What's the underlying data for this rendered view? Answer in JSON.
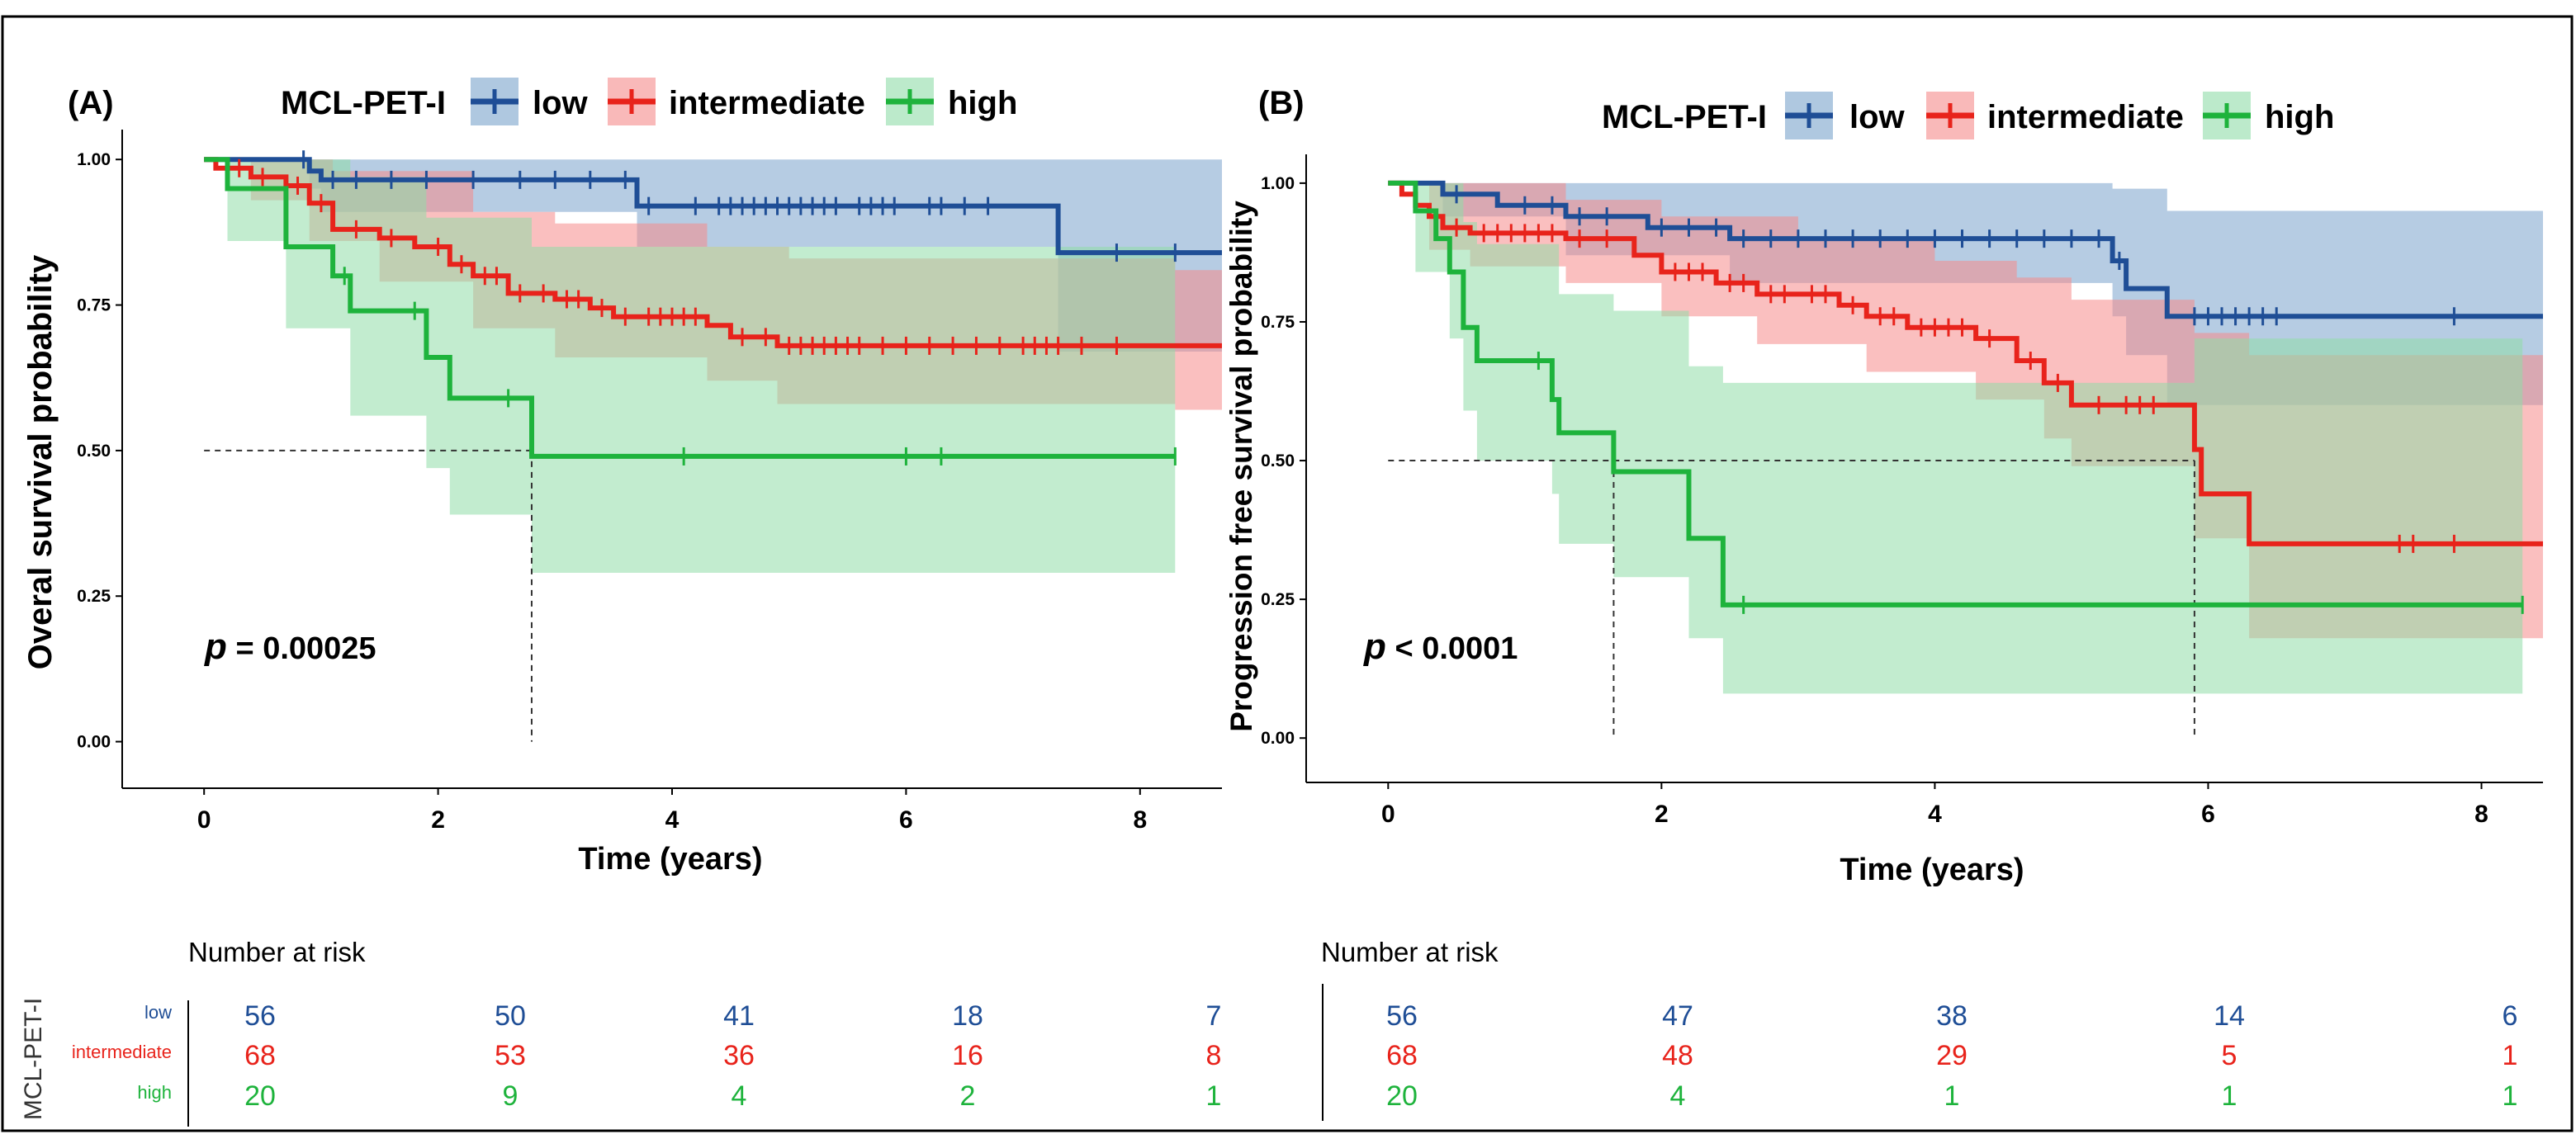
{
  "colors": {
    "low": "#1f4e96",
    "intermediate": "#e8231b",
    "high": "#1eb33c",
    "low_band": "#7aa3cc",
    "intermediate_band": "#f58a8a",
    "high_band": "#8fdca8",
    "axis": "#000000",
    "ref_line": "#333333",
    "frame": "#000000"
  },
  "chart_data": [
    {
      "type": "line",
      "panel_label": "(A)",
      "legend_title": "MCL-PET-I",
      "legend_entries": [
        "low",
        "intermediate",
        "high"
      ],
      "xlabel": "Time (years)",
      "ylabel": "Overal survival probability",
      "xlim": [
        -0.7,
        8.7
      ],
      "ylim": [
        -0.08,
        1.04
      ],
      "xticks": [
        0,
        2,
        4,
        6,
        8
      ],
      "yticks": [
        0.0,
        0.25,
        0.5,
        0.75,
        1.0
      ],
      "ytick_labels": [
        "0.00",
        "0.25",
        "0.50",
        "0.75",
        "1.00"
      ],
      "p_label": "p",
      "p_rest": " = 0.00025",
      "median_line": {
        "y": 0.5,
        "x_end": 2.8,
        "drops": [
          2.8
        ]
      },
      "series": [
        {
          "name": "low",
          "end_x": 8.7,
          "steps": [
            [
              0,
              1.0
            ],
            [
              0.9,
              0.98
            ],
            [
              1.0,
              0.965
            ],
            [
              3.7,
              0.92
            ],
            [
              7.3,
              0.84
            ]
          ],
          "band_upper": [
            [
              0,
              1.0
            ],
            [
              1.0,
              1.0
            ],
            [
              3.7,
              1.0
            ],
            [
              7.3,
              1.0
            ],
            [
              8.7,
              1.0
            ]
          ],
          "band_lower": [
            [
              0,
              1.0
            ],
            [
              0.9,
              0.95
            ],
            [
              1.0,
              0.91
            ],
            [
              3.7,
              0.85
            ],
            [
              7.3,
              0.67
            ],
            [
              8.7,
              0.67
            ]
          ],
          "censors": [
            0.85,
            1.1,
            1.3,
            1.6,
            1.9,
            2.3,
            2.7,
            3.0,
            3.3,
            3.6,
            3.8,
            4.2,
            4.4,
            4.5,
            4.6,
            4.7,
            4.8,
            4.9,
            5.0,
            5.1,
            5.2,
            5.3,
            5.4,
            5.6,
            5.7,
            5.8,
            5.9,
            6.2,
            6.3,
            6.5,
            6.7,
            7.8,
            8.3
          ]
        },
        {
          "name": "intermediate",
          "end_x": 8.7,
          "steps": [
            [
              0,
              1.0
            ],
            [
              0.1,
              0.985
            ],
            [
              0.4,
              0.97
            ],
            [
              0.7,
              0.955
            ],
            [
              0.9,
              0.925
            ],
            [
              1.1,
              0.88
            ],
            [
              1.5,
              0.865
            ],
            [
              1.8,
              0.85
            ],
            [
              2.1,
              0.82
            ],
            [
              2.3,
              0.8
            ],
            [
              2.6,
              0.77
            ],
            [
              3.0,
              0.76
            ],
            [
              3.3,
              0.745
            ],
            [
              3.5,
              0.73
            ],
            [
              4.3,
              0.715
            ],
            [
              4.5,
              0.695
            ],
            [
              4.9,
              0.68
            ]
          ],
          "band_upper": [
            [
              0,
              1.0
            ],
            [
              0.9,
              1.0
            ],
            [
              1.1,
              0.98
            ],
            [
              2.3,
              0.91
            ],
            [
              3.0,
              0.89
            ],
            [
              4.3,
              0.85
            ],
            [
              5.0,
              0.83
            ],
            [
              8.3,
              0.83
            ],
            [
              8.3,
              0.81
            ],
            [
              8.7,
              0.81
            ]
          ],
          "band_lower": [
            [
              0,
              1.0
            ],
            [
              0.4,
              0.93
            ],
            [
              0.9,
              0.86
            ],
            [
              1.5,
              0.79
            ],
            [
              2.3,
              0.71
            ],
            [
              3.0,
              0.66
            ],
            [
              4.3,
              0.62
            ],
            [
              4.9,
              0.58
            ],
            [
              8.3,
              0.58
            ],
            [
              8.3,
              0.57
            ],
            [
              8.7,
              0.57
            ]
          ],
          "censors": [
            0.3,
            0.5,
            0.8,
            1.0,
            1.3,
            1.6,
            2.0,
            2.2,
            2.4,
            2.5,
            2.7,
            2.9,
            3.1,
            3.2,
            3.4,
            3.6,
            3.8,
            3.9,
            4.0,
            4.1,
            4.2,
            4.6,
            4.8,
            5.0,
            5.1,
            5.2,
            5.3,
            5.4,
            5.5,
            5.6,
            5.8,
            6.0,
            6.2,
            6.4,
            6.6,
            6.8,
            7.0,
            7.1,
            7.2,
            7.3,
            7.5,
            7.8
          ]
        },
        {
          "name": "high",
          "end_x": 8.3,
          "steps": [
            [
              0,
              1.0
            ],
            [
              0.2,
              0.95
            ],
            [
              0.7,
              0.85
            ],
            [
              1.1,
              0.8
            ],
            [
              1.25,
              0.74
            ],
            [
              1.9,
              0.66
            ],
            [
              2.1,
              0.59
            ],
            [
              2.8,
              0.49
            ]
          ],
          "band_upper": [
            [
              0,
              1.0
            ],
            [
              0.2,
              1.0
            ],
            [
              1.25,
              0.97
            ],
            [
              1.9,
              0.9
            ],
            [
              2.8,
              0.85
            ],
            [
              8.3,
              0.85
            ]
          ],
          "band_lower": [
            [
              0,
              1.0
            ],
            [
              0.2,
              0.86
            ],
            [
              0.7,
              0.71
            ],
            [
              1.25,
              0.56
            ],
            [
              1.9,
              0.47
            ],
            [
              2.1,
              0.39
            ],
            [
              2.8,
              0.29
            ],
            [
              8.3,
              0.29
            ]
          ],
          "censors": [
            1.2,
            1.8,
            2.6,
            4.1,
            6.0,
            6.3,
            8.3
          ]
        }
      ],
      "risk_table": {
        "title": "Number at risk",
        "strata_label": "MCL-PET-I",
        "groups": [
          "low",
          "intermediate",
          "high"
        ],
        "times": [
          0,
          2,
          4,
          6,
          8
        ],
        "rows": [
          [
            56,
            50,
            41,
            18,
            7
          ],
          [
            68,
            53,
            36,
            16,
            8
          ],
          [
            20,
            9,
            4,
            2,
            1
          ]
        ]
      }
    },
    {
      "type": "line",
      "panel_label": "(B)",
      "legend_title": "MCL-PET-I",
      "legend_entries": [
        "low",
        "intermediate",
        "high"
      ],
      "xlabel": "Time (years)",
      "ylabel": "Progression free survival probability",
      "xlim": [
        -0.6,
        8.45
      ],
      "ylim": [
        -0.08,
        1.04
      ],
      "xticks": [
        0,
        2,
        4,
        6,
        8
      ],
      "yticks": [
        0.0,
        0.25,
        0.5,
        0.75,
        1.0
      ],
      "ytick_labels": [
        "0.00",
        "0.25",
        "0.50",
        "0.75",
        "1.00"
      ],
      "p_label": "p",
      "p_rest": " < 0.0001",
      "median_line": {
        "y": 0.5,
        "x_end": 5.9,
        "drops": [
          1.65,
          5.9
        ]
      },
      "series": [
        {
          "name": "low",
          "end_x": 8.45,
          "steps": [
            [
              0,
              1.0
            ],
            [
              0.4,
              0.98
            ],
            [
              0.8,
              0.96
            ],
            [
              1.3,
              0.94
            ],
            [
              1.9,
              0.92
            ],
            [
              2.5,
              0.9
            ],
            [
              5.3,
              0.86
            ],
            [
              5.4,
              0.81
            ],
            [
              5.7,
              0.76
            ]
          ],
          "band_upper": [
            [
              0,
              1.0
            ],
            [
              1.9,
              1.0
            ],
            [
              5.3,
              0.99
            ],
            [
              5.7,
              0.95
            ],
            [
              8.45,
              0.95
            ]
          ],
          "band_lower": [
            [
              0,
              1.0
            ],
            [
              0.4,
              0.94
            ],
            [
              1.3,
              0.87
            ],
            [
              2.5,
              0.82
            ],
            [
              5.3,
              0.76
            ],
            [
              5.4,
              0.69
            ],
            [
              5.7,
              0.6
            ],
            [
              8.45,
              0.6
            ]
          ],
          "censors": [
            0.5,
            1.0,
            1.2,
            1.4,
            1.6,
            2.0,
            2.2,
            2.4,
            2.6,
            2.8,
            3.0,
            3.2,
            3.4,
            3.6,
            3.8,
            4.0,
            4.2,
            4.4,
            4.6,
            4.8,
            5.0,
            5.2,
            5.35,
            5.9,
            6.0,
            6.1,
            6.2,
            6.3,
            6.4,
            6.5,
            7.8
          ]
        },
        {
          "name": "intermediate",
          "end_x": 8.45,
          "steps": [
            [
              0,
              1.0
            ],
            [
              0.1,
              0.98
            ],
            [
              0.2,
              0.96
            ],
            [
              0.3,
              0.94
            ],
            [
              0.4,
              0.92
            ],
            [
              0.6,
              0.91
            ],
            [
              1.3,
              0.9
            ],
            [
              1.8,
              0.87
            ],
            [
              2.0,
              0.84
            ],
            [
              2.4,
              0.82
            ],
            [
              2.7,
              0.8
            ],
            [
              3.3,
              0.78
            ],
            [
              3.5,
              0.76
            ],
            [
              3.8,
              0.74
            ],
            [
              4.3,
              0.72
            ],
            [
              4.6,
              0.68
            ],
            [
              4.8,
              0.64
            ],
            [
              5.0,
              0.6
            ],
            [
              5.9,
              0.52
            ],
            [
              5.95,
              0.44
            ],
            [
              6.3,
              0.35
            ]
          ],
          "band_upper": [
            [
              0,
              1.0
            ],
            [
              0.4,
              1.0
            ],
            [
              1.3,
              0.97
            ],
            [
              2.0,
              0.94
            ],
            [
              3.0,
              0.9
            ],
            [
              4.0,
              0.86
            ],
            [
              4.6,
              0.83
            ],
            [
              5.0,
              0.79
            ],
            [
              5.9,
              0.73
            ],
            [
              6.3,
              0.69
            ],
            [
              8.45,
              0.69
            ]
          ],
          "band_lower": [
            [
              0,
              1.0
            ],
            [
              0.3,
              0.88
            ],
            [
              0.6,
              0.85
            ],
            [
              1.3,
              0.82
            ],
            [
              2.0,
              0.76
            ],
            [
              2.7,
              0.71
            ],
            [
              3.5,
              0.66
            ],
            [
              4.3,
              0.61
            ],
            [
              4.8,
              0.54
            ],
            [
              5.0,
              0.49
            ],
            [
              5.9,
              0.36
            ],
            [
              6.3,
              0.18
            ],
            [
              8.45,
              0.18
            ]
          ],
          "censors": [
            0.5,
            0.7,
            0.8,
            0.9,
            1.0,
            1.1,
            1.2,
            1.4,
            1.6,
            2.1,
            2.2,
            2.3,
            2.5,
            2.6,
            2.8,
            2.9,
            3.1,
            3.2,
            3.4,
            3.6,
            3.7,
            3.9,
            4.0,
            4.1,
            4.2,
            4.4,
            4.7,
            4.9,
            5.2,
            5.4,
            5.5,
            5.6,
            7.4,
            7.5,
            7.8
          ]
        },
        {
          "name": "high",
          "end_x": 8.3,
          "steps": [
            [
              0,
              1.0
            ],
            [
              0.2,
              0.95
            ],
            [
              0.35,
              0.9
            ],
            [
              0.45,
              0.84
            ],
            [
              0.55,
              0.74
            ],
            [
              0.65,
              0.68
            ],
            [
              1.2,
              0.61
            ],
            [
              1.25,
              0.55
            ],
            [
              1.65,
              0.48
            ],
            [
              2.2,
              0.36
            ],
            [
              2.45,
              0.24
            ]
          ],
          "band_upper": [
            [
              0,
              1.0
            ],
            [
              0.35,
              1.0
            ],
            [
              0.55,
              0.93
            ],
            [
              0.65,
              0.89
            ],
            [
              1.25,
              0.8
            ],
            [
              1.65,
              0.77
            ],
            [
              2.2,
              0.67
            ],
            [
              2.45,
              0.64
            ],
            [
              5.9,
              0.64
            ],
            [
              5.9,
              0.72
            ],
            [
              8.3,
              0.72
            ]
          ],
          "band_lower": [
            [
              0,
              1.0
            ],
            [
              0.2,
              0.84
            ],
            [
              0.45,
              0.72
            ],
            [
              0.55,
              0.59
            ],
            [
              0.65,
              0.5
            ],
            [
              1.2,
              0.44
            ],
            [
              1.25,
              0.35
            ],
            [
              1.65,
              0.29
            ],
            [
              2.2,
              0.18
            ],
            [
              2.45,
              0.08
            ],
            [
              8.3,
              0.08
            ]
          ],
          "censors": [
            1.1,
            2.6,
            8.3
          ]
        }
      ],
      "risk_table": {
        "title": "Number at risk",
        "groups": [
          "low",
          "intermediate",
          "high"
        ],
        "times": [
          0,
          2,
          4,
          6,
          8
        ],
        "rows": [
          [
            56,
            47,
            38,
            14,
            6
          ],
          [
            68,
            48,
            29,
            5,
            1
          ],
          [
            20,
            4,
            1,
            1,
            1
          ]
        ]
      }
    }
  ]
}
